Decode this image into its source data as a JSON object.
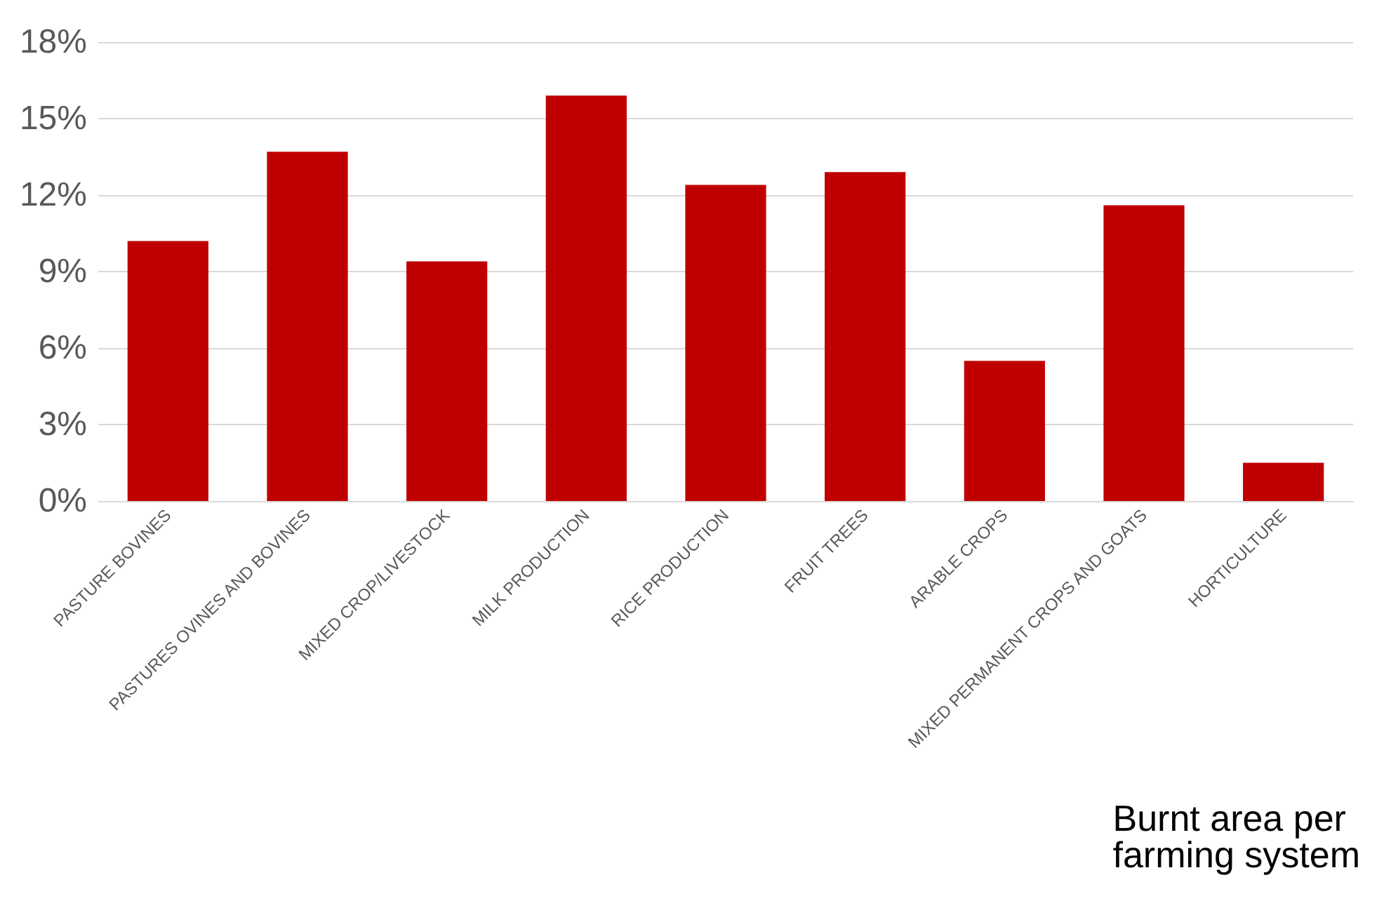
{
  "chart_data": {
    "type": "bar",
    "title": "Burnt area per farming system",
    "categories": [
      "PASTURE BOVINES",
      "PASTURES OVINES AND BOVINES",
      "MIXED CROP/LIVESTOCK",
      "MILK PRODUCTION",
      "RICE PRODUCTION",
      "FRUIT TREES",
      "ARABLE CROPS",
      "MIXED PERMANENT CROPS AND GOATS",
      "HORTICULTURE"
    ],
    "values": [
      10.2,
      13.7,
      9.4,
      15.9,
      12.4,
      12.9,
      5.5,
      11.6,
      1.5
    ],
    "color": "#c00000",
    "ylim": [
      0,
      18
    ],
    "yticks": [
      {
        "value": 0,
        "label": "0%"
      },
      {
        "value": 3,
        "label": "3%"
      },
      {
        "value": 6,
        "label": "6%"
      },
      {
        "value": 9,
        "label": "9%"
      },
      {
        "value": 12,
        "label": "12%"
      },
      {
        "value": 15,
        "label": "15%"
      },
      {
        "value": 18,
        "label": "18%"
      }
    ],
    "grid": "y"
  }
}
